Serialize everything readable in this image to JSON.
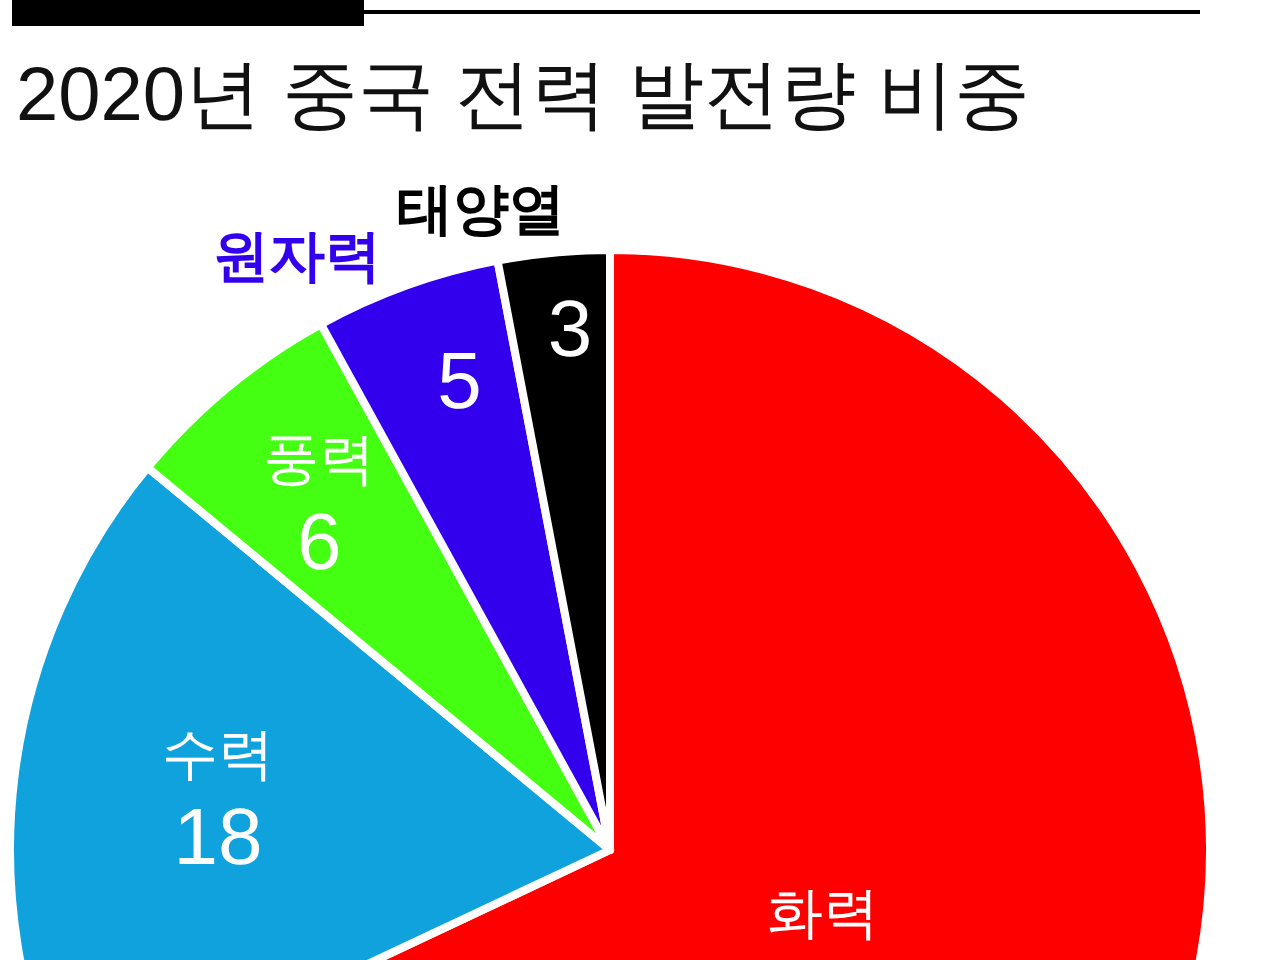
{
  "chart_data": {
    "type": "pie",
    "title": "2020년 중국 전력 발전량 비중",
    "categories": [
      "화력",
      "수력",
      "풍력",
      "원자력",
      "태양열"
    ],
    "values": [
      68,
      18,
      6,
      5,
      3
    ],
    "colors": [
      "#ff0000",
      "#10a2dc",
      "#44ff11",
      "#3300ee",
      "#000000"
    ],
    "value_labels": [
      null,
      "18",
      "6",
      "5",
      "3"
    ]
  }
}
